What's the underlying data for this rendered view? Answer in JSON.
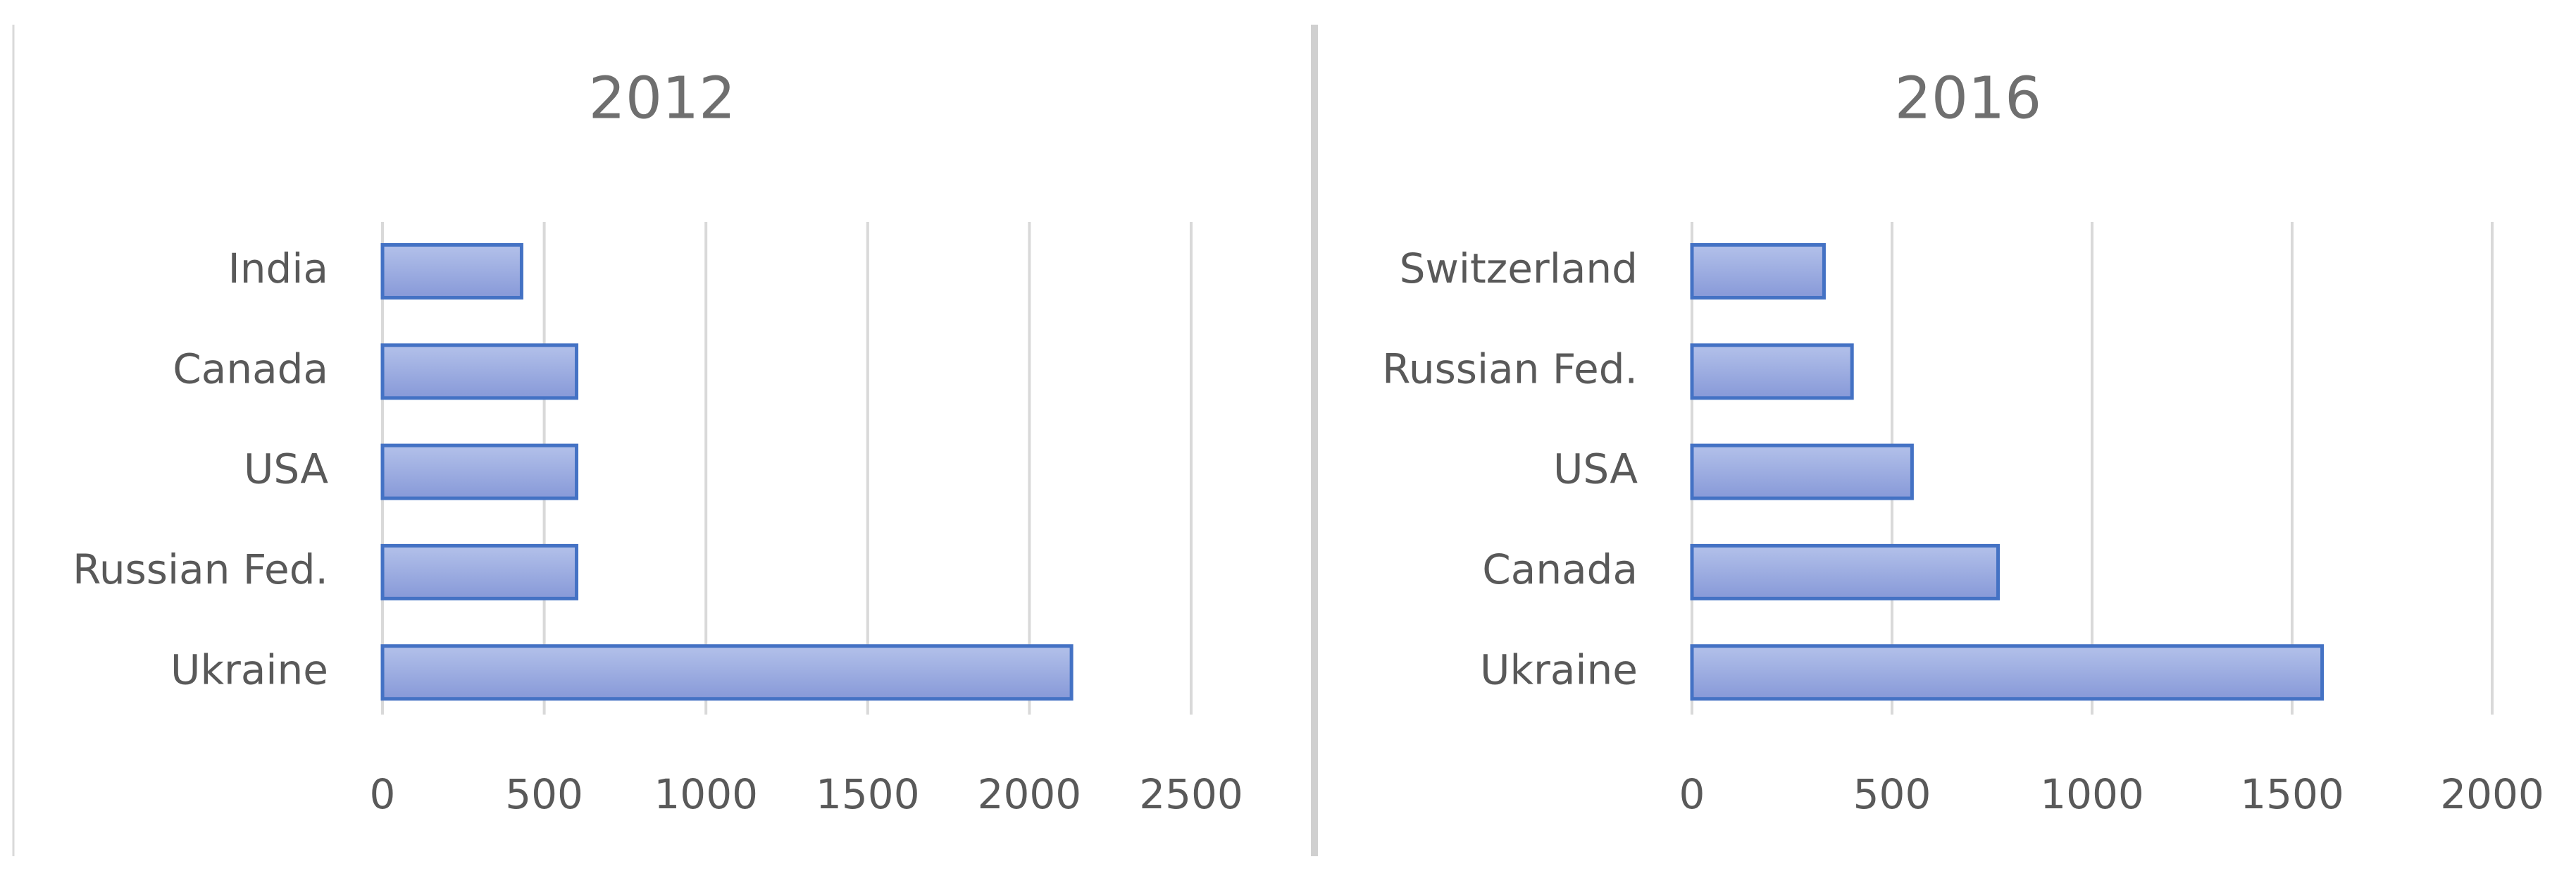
{
  "chart_data": [
    {
      "type": "bar",
      "orientation": "horizontal",
      "title": "2012",
      "categories": [
        "India",
        "Canada",
        "USA",
        "Russian Fed.",
        "Ukraine"
      ],
      "values": [
        430,
        600,
        600,
        600,
        2130
      ],
      "color": "#4472c4",
      "xlim": [
        0,
        2500
      ],
      "xticks": [
        0,
        500,
        1000,
        1500,
        2000,
        2500
      ],
      "grid": true
    },
    {
      "type": "bar",
      "orientation": "horizontal",
      "title": "2016",
      "categories": [
        "Switzerland",
        "Russian Fed.",
        "USA",
        "Canada",
        "Ukraine"
      ],
      "values": [
        330,
        400,
        550,
        765,
        1575
      ],
      "color": "#4472c4",
      "xlim": [
        0,
        2000
      ],
      "xticks": [
        0,
        500,
        1000,
        1500,
        2000
      ],
      "grid": true
    }
  ]
}
